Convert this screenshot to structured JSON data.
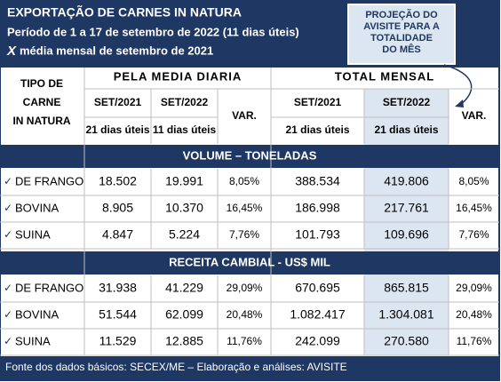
{
  "header": {
    "title": "EXPORTAÇÃO DE CARNES IN NATURA",
    "period": "Período de 1 a 17 de setembro de 2022 (11 dias úteis)",
    "compare_mark": "X",
    "compare": "média mensal de setembro de 2021"
  },
  "callout": {
    "lines": [
      "PROJEÇÃO DO",
      "AVISITE PARA A",
      "TOTALIDADE",
      "DO MÊS"
    ]
  },
  "table": {
    "row_header": [
      "TIPO DE",
      "CARNE",
      "IN NATURA"
    ],
    "groups": [
      "PELA MEDIA DIARIA",
      "TOTAL MENSAL"
    ],
    "columns": [
      "SET/2021",
      "SET/2022",
      "VAR.",
      "SET/2021",
      "SET/2022",
      "VAR."
    ],
    "subheaders": [
      "21 dias úteis",
      "11 dias úteis",
      "21 dias úteis",
      "21 dias úteis"
    ],
    "sections": [
      {
        "title": "VOLUME – TONELADAS",
        "rows": [
          [
            "DE FRANGO",
            "18.502",
            "19.991",
            "8,05%",
            "388.534",
            "419.806",
            "8,05%"
          ],
          [
            "BOVINA",
            "8.905",
            "10.370",
            "16,45%",
            "186.998",
            "217.761",
            "16,45%"
          ],
          [
            "SUINA",
            "4.847",
            "5.224",
            "7,76%",
            "101.793",
            "109.696",
            "7,76%"
          ]
        ]
      },
      {
        "title": "RECEITA CAMBIAL - US$ MIL",
        "rows": [
          [
            "DE FRANGO",
            "31.938",
            "41.229",
            "29,09%",
            "670.695",
            "865.815",
            "29,09%"
          ],
          [
            "BOVINA",
            "51.544",
            "62.099",
            "20,48%",
            "1.082.417",
            "1.304.081",
            "20,48%"
          ],
          [
            "SUINA",
            "11.529",
            "12.885",
            "11,76%",
            "242.099",
            "270.580",
            "11,76%"
          ]
        ]
      }
    ]
  },
  "footer": "Fonte dos dados básicos: SECEX/ME – Elaboração e análises: AVISITE"
}
